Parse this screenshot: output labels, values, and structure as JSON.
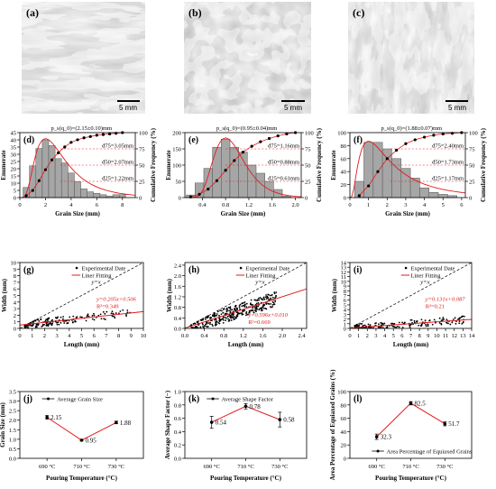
{
  "micrographs": [
    {
      "label": "(a)",
      "scale_bar": "5 mm"
    },
    {
      "label": "(b)",
      "scale_bar": "5 mm"
    },
    {
      "label": "(c)",
      "scale_bar": "5 mm"
    }
  ],
  "chart_data": [
    {
      "type": "bar",
      "label": "(d)",
      "xlabel": "Grain Size (mm)",
      "ylabel": "Enumerate",
      "y2label": "Cumulative Frequency (%)",
      "xlim": [
        0,
        9
      ],
      "ylim": [
        0,
        45
      ],
      "y2lim": [
        0,
        100
      ],
      "xticks": [
        "0",
        "2",
        "4",
        "6",
        "8"
      ],
      "yticks": [
        "0",
        "5",
        "10",
        "15",
        "20",
        "25",
        "30",
        "35",
        "40",
        "45"
      ],
      "y2ticks": [
        "0",
        "25",
        "50",
        "75",
        "100"
      ],
      "bins": [
        0.5,
        1,
        1.5,
        2,
        2.5,
        3,
        3.5,
        4,
        4.5,
        5,
        5.5,
        6,
        6.5,
        7,
        7.5,
        8
      ],
      "values": [
        7,
        22,
        34,
        40,
        36,
        27,
        24,
        17,
        11,
        6,
        4,
        3,
        2,
        1,
        2,
        2
      ],
      "fit_title": "p_s(q_0)=(2.15±0.10)mm",
      "cumulative": [
        [
          0.5,
          3
        ],
        [
          1,
          11
        ],
        [
          1.5,
          26
        ],
        [
          2,
          43
        ],
        [
          2.5,
          58
        ],
        [
          3,
          69
        ],
        [
          3.5,
          78
        ],
        [
          4,
          85
        ],
        [
          4.5,
          89
        ],
        [
          5,
          92
        ],
        [
          5.5,
          94
        ],
        [
          6,
          96
        ],
        [
          6.5,
          97
        ],
        [
          7,
          98
        ],
        [
          7.5,
          99
        ],
        [
          8,
          100
        ]
      ],
      "annotations": [
        "d75=3.05mm",
        "d50=2.07mm",
        "d25=1.22mm"
      ]
    },
    {
      "type": "bar",
      "label": "(e)",
      "xlabel": "Grain Size (mm)",
      "ylabel": "Enumerate",
      "y2label": "Cumulative Frequency (%)",
      "xlim": [
        0.1,
        2.1
      ],
      "ylim": [
        0,
        200
      ],
      "y2lim": [
        0,
        100
      ],
      "xticks": [
        "0.4",
        "0.8",
        "1.2",
        "1.6",
        "2.0"
      ],
      "yticks": [
        "0",
        "50",
        "100",
        "150",
        "200"
      ],
      "y2ticks": [
        "0",
        "25",
        "50",
        "75",
        "100"
      ],
      "bins": [
        0.2,
        0.35,
        0.5,
        0.65,
        0.8,
        0.95,
        1.1,
        1.25,
        1.4,
        1.55,
        1.7,
        1.85
      ],
      "values": [
        8,
        45,
        90,
        155,
        180,
        155,
        140,
        100,
        75,
        50,
        25,
        5
      ],
      "fit_title": "p_s(q_0)=(0.95±0.04)mm",
      "cumulative": [
        [
          0.2,
          1
        ],
        [
          0.35,
          5
        ],
        [
          0.5,
          13
        ],
        [
          0.65,
          26
        ],
        [
          0.8,
          42
        ],
        [
          0.95,
          57
        ],
        [
          1.1,
          70
        ],
        [
          1.25,
          79
        ],
        [
          1.4,
          86
        ],
        [
          1.55,
          91
        ],
        [
          1.7,
          95
        ],
        [
          1.85,
          98
        ],
        [
          2,
          100
        ]
      ],
      "annotations": [
        "d75=1.16mm",
        "d50=0.88mm",
        "d25=0.61mm"
      ]
    },
    {
      "type": "bar",
      "label": "(f)",
      "xlabel": "Grain Size (mm)",
      "ylabel": "Enumerate",
      "y2label": "Cumulative Frequency (%)",
      "xlim": [
        0,
        6.2
      ],
      "ylim": [
        0,
        100
      ],
      "y2lim": [
        0,
        100
      ],
      "xticks": [
        "0",
        "1",
        "2",
        "3",
        "4",
        "5",
        "6"
      ],
      "yticks": [
        "0",
        "20",
        "40",
        "60",
        "80",
        "100"
      ],
      "y2ticks": [
        "0",
        "25",
        "50",
        "75",
        "100"
      ],
      "bins": [
        0.5,
        1,
        1.5,
        2,
        2.5,
        3,
        3.5,
        4,
        4.5,
        5,
        5.5
      ],
      "values": [
        25,
        85,
        85,
        75,
        60,
        45,
        30,
        15,
        8,
        5,
        3
      ],
      "fit_title": "p_s(q_0)=(1.88±0.07)mm",
      "cumulative": [
        [
          0.5,
          3
        ],
        [
          1,
          18
        ],
        [
          1.5,
          40
        ],
        [
          2,
          60
        ],
        [
          2.5,
          73
        ],
        [
          3,
          83
        ],
        [
          3.5,
          89
        ],
        [
          4,
          93
        ],
        [
          4.5,
          96
        ],
        [
          5,
          98
        ],
        [
          5.5,
          99
        ],
        [
          6,
          100
        ]
      ],
      "annotations": [
        "d75=2.40mm",
        "d50=1.73mm",
        "d25=1.17mm"
      ]
    },
    {
      "type": "scatter",
      "label": "(g)",
      "xlabel": "Length (mm)",
      "ylabel": "Width (mm)",
      "xlim": [
        0,
        10
      ],
      "ylim": [
        0,
        10
      ],
      "xticks": [
        "0",
        "1",
        "2",
        "3",
        "4",
        "5",
        "6",
        "7",
        "8",
        "9",
        "10"
      ],
      "yticks": [
        "0",
        "1",
        "2",
        "3",
        "4",
        "5",
        "6",
        "7",
        "8",
        "9",
        "10"
      ],
      "legend": [
        "Experimental Date",
        "Liner Fitting"
      ],
      "diagonal_label": "y=x",
      "fit_slope": 0.205,
      "fit_intercept": 0.506,
      "fit_eq": "y=0.205x+0.506",
      "r2": "R²=0.349"
    },
    {
      "type": "scatter",
      "label": "(h)",
      "xlabel": "Length (mm)",
      "ylabel": "Width (mm)",
      "xlim": [
        0,
        2.5
      ],
      "ylim": [
        0,
        2.5
      ],
      "xticks": [
        "0.0",
        "0.4",
        "0.8",
        "1.2",
        "1.6",
        "2.0",
        "2.4"
      ],
      "yticks": [
        "0.0",
        "0.4",
        "0.8",
        "1.2",
        "1.6",
        "2.0",
        "2.4"
      ],
      "legend": [
        "Experimental Date",
        "Liner Fitting"
      ],
      "diagonal_label": "y=x",
      "fit_slope": 0.596,
      "fit_intercept": 0.01,
      "fit_eq": "y=0.596x+0.010",
      "r2": "R²=0.669"
    },
    {
      "type": "scatter",
      "label": "(i)",
      "xlabel": "Length (mm)",
      "ylabel": "Width (mm)",
      "xlim": [
        0,
        14
      ],
      "ylim": [
        0,
        14
      ],
      "xticks": [
        "0",
        "1",
        "2",
        "3",
        "4",
        "5",
        "6",
        "7",
        "8",
        "9",
        "10",
        "11",
        "12",
        "13",
        "14"
      ],
      "yticks": [
        "0",
        "1",
        "2",
        "3",
        "4",
        "5",
        "6",
        "7",
        "8",
        "9",
        "10",
        "11",
        "12",
        "13",
        "14"
      ],
      "legend": [
        "Experimental Date",
        "Liner Fitting"
      ],
      "diagonal_label": "y=x",
      "fit_slope": 0.131,
      "fit_intercept": 0.087,
      "fit_eq": "y=0.131x+0.087",
      "r2": "R²=0.21"
    },
    {
      "type": "line",
      "label": "(j)",
      "xlabel": "Pouring Temperature (°C)",
      "ylabel": "Grain Size (mm)",
      "legend": "Average Grain Size",
      "categories": [
        "690 °C",
        "710 °C",
        "730 °C"
      ],
      "values": [
        2.15,
        0.95,
        1.88
      ],
      "errors": [
        0.1,
        0.04,
        0.07
      ],
      "value_labels": [
        "2.15",
        "0.95",
        "1.88"
      ],
      "ylim": [
        0,
        3.5
      ],
      "yticks": [
        "0.0",
        "0.5",
        "1.0",
        "1.5",
        "2.0",
        "2.5",
        "3.0",
        "3.5"
      ]
    },
    {
      "type": "line",
      "label": "(k)",
      "xlabel": "Pouring Temperature (°C)",
      "ylabel": "Average Shape Factor (−)",
      "legend": "Average Shape Factor",
      "categories": [
        "690 °C",
        "710 °C",
        "730 °C"
      ],
      "values": [
        0.54,
        0.78,
        0.58
      ],
      "errors": [
        0.09,
        0.04,
        0.11
      ],
      "value_labels": [
        "0.54",
        "0.78",
        "0.58"
      ],
      "ylim": [
        0,
        1
      ],
      "yticks": [
        "0.0",
        "0.2",
        "0.4",
        "0.6",
        "0.8",
        "1.0"
      ]
    },
    {
      "type": "line",
      "label": "(l)",
      "xlabel": "Pouring Temperature (°C)",
      "ylabel": "Area Percentage of Equiaxed Grains (%)",
      "legend": "Area Percentage of Equiaxed Grains",
      "categories": [
        "690 °C",
        "710 °C",
        "730 °C"
      ],
      "values": [
        32.3,
        82.5,
        51.7
      ],
      "errors": [
        4,
        2.5,
        3
      ],
      "value_labels": [
        "32.3",
        "82.5",
        "51.7"
      ],
      "ylim": [
        0,
        100
      ],
      "yticks": [
        "0",
        "20",
        "40",
        "60",
        "80",
        "100"
      ]
    }
  ]
}
